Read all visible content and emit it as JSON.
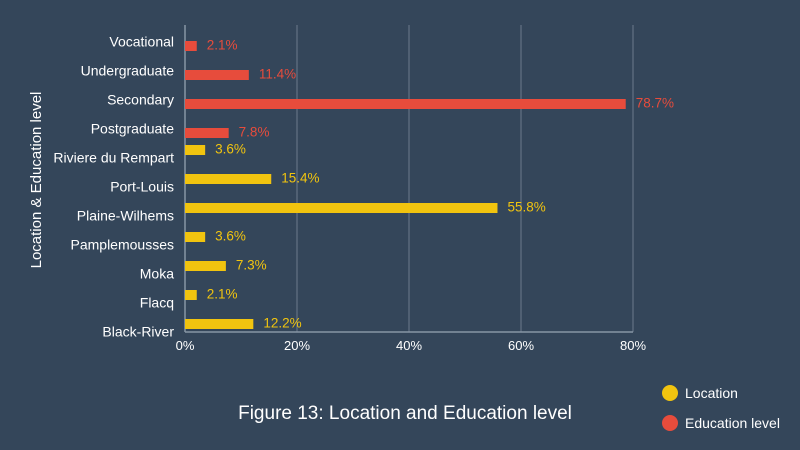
{
  "chart_data": {
    "type": "bar",
    "orientation": "horizontal",
    "title": "Figure 13: Location and Education level",
    "xlabel": "",
    "ylabel": "Location & Education level",
    "xlim": [
      0,
      80
    ],
    "xticks": [
      "0%",
      "20%",
      "40%",
      "60%",
      "80%"
    ],
    "grid": "vertical",
    "legend_position": "bottom-right",
    "series": [
      {
        "name": "Education level",
        "color": "#e74c3c",
        "categories": [
          "Vocational",
          "Undergraduate",
          "Secondary",
          "Postgraduate"
        ],
        "values": [
          2.1,
          11.4,
          78.7,
          7.8
        ],
        "labels": [
          "2.1%",
          "11.4%",
          "78.7%",
          "7.8%"
        ]
      },
      {
        "name": "Location",
        "color": "#f1c40f",
        "categories": [
          "Riviere du Rempart",
          "Port-Louis",
          "Plaine-Wilhems",
          "Pamplemousses",
          "Moka",
          "Flacq",
          "Black-River"
        ],
        "values": [
          3.6,
          15.4,
          55.8,
          3.6,
          7.3,
          2.1,
          12.2
        ],
        "labels": [
          "3.6%",
          "15.4%",
          "55.8%",
          "3.6%",
          "7.3%",
          "2.1%",
          "12.2%"
        ]
      }
    ]
  },
  "legend": [
    {
      "label": "Location",
      "color": "#f1c40f"
    },
    {
      "label": "Education level",
      "color": "#e74c3c"
    }
  ]
}
